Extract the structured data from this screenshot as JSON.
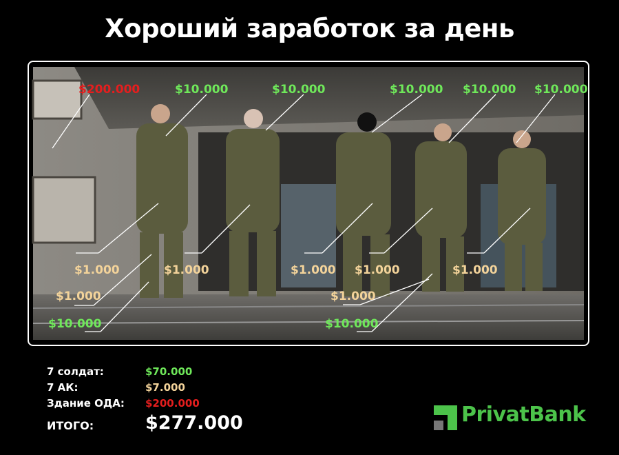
{
  "title": "Хороший заработок за день",
  "colors": {
    "red": "#e51e1e",
    "green": "#6fe85a",
    "tan": "#f3d39a",
    "brand": "#4cc34a"
  },
  "photo_labels": {
    "top": [
      "$200.000",
      "$10.000",
      "$10.000",
      "$10.000",
      "$10.000",
      "$10.000"
    ],
    "weapons": [
      "$1.000",
      "$1.000",
      "$1.000",
      "$1.000",
      "$1.000",
      "$1.000",
      "$1.000"
    ],
    "boots": [
      "$10.000",
      "$10.000"
    ]
  },
  "summary": [
    {
      "label": "7 солдат:",
      "value": "$70.000"
    },
    {
      "label": "7 АК:",
      "value": "$7.000"
    },
    {
      "label": "Здание ОДА:",
      "value": "$200.000"
    },
    {
      "label": "ИТОГО:",
      "value": "$277.000"
    }
  ],
  "logo": "PrivatBank"
}
